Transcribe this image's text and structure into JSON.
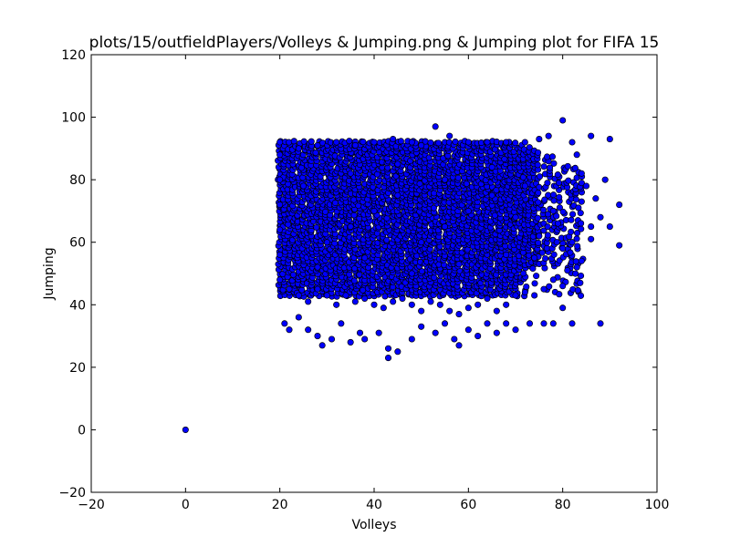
{
  "chart_data": {
    "type": "scatter",
    "title": "plots/15/outfieldPlayers/Volleys & Jumping.png & Jumping plot for FIFA 15",
    "xlabel": "Volleys",
    "ylabel": "Jumping",
    "xlim": [
      -20,
      100
    ],
    "ylim": [
      -20,
      120
    ],
    "xticks": [
      "−20",
      "0",
      "20",
      "40",
      "60",
      "80",
      "100"
    ],
    "yticks": [
      "−20",
      "0",
      "20",
      "40",
      "60",
      "80",
      "100",
      "120"
    ],
    "grid": false,
    "marker_color": "#0000ff",
    "marker_edge_color": "#000000",
    "series": [
      {
        "points": [
          [
            0,
            0
          ],
          [
            20,
            92
          ],
          [
            20,
            88
          ],
          [
            20,
            80
          ],
          [
            20,
            72
          ],
          [
            20,
            64
          ],
          [
            20,
            56
          ],
          [
            20,
            48
          ],
          [
            21,
            34
          ],
          [
            22,
            32
          ],
          [
            24,
            36
          ],
          [
            26,
            32
          ],
          [
            28,
            30
          ],
          [
            29,
            27
          ],
          [
            31,
            29
          ],
          [
            33,
            34
          ],
          [
            35,
            28
          ],
          [
            37,
            31
          ],
          [
            38,
            29
          ],
          [
            41,
            31
          ],
          [
            43,
            23
          ],
          [
            43,
            26
          ],
          [
            45,
            25
          ],
          [
            48,
            29
          ],
          [
            50,
            33
          ],
          [
            53,
            31
          ],
          [
            55,
            34
          ],
          [
            57,
            29
          ],
          [
            58,
            27
          ],
          [
            60,
            32
          ],
          [
            62,
            30
          ],
          [
            64,
            34
          ],
          [
            66,
            31
          ],
          [
            68,
            34
          ],
          [
            70,
            32
          ],
          [
            73,
            34
          ],
          [
            76,
            34
          ],
          [
            78,
            34
          ],
          [
            80,
            39
          ],
          [
            82,
            34
          ],
          [
            88,
            34
          ],
          [
            24,
            90
          ],
          [
            28,
            91
          ],
          [
            32,
            92
          ],
          [
            36,
            91
          ],
          [
            40,
            92
          ],
          [
            44,
            93
          ],
          [
            48,
            92
          ],
          [
            50,
            91
          ],
          [
            53,
            97
          ],
          [
            56,
            94
          ],
          [
            60,
            92
          ],
          [
            64,
            92
          ],
          [
            68,
            92
          ],
          [
            72,
            92
          ],
          [
            75,
            93
          ],
          [
            77,
            94
          ],
          [
            80,
            99
          ],
          [
            82,
            92
          ],
          [
            83,
            88
          ],
          [
            84,
            82
          ],
          [
            85,
            78
          ],
          [
            86,
            94
          ],
          [
            87,
            74
          ],
          [
            88,
            68
          ],
          [
            89,
            80
          ],
          [
            90,
            93
          ],
          [
            90,
            65
          ],
          [
            92,
            72
          ],
          [
            92,
            59
          ],
          [
            86,
            61
          ],
          [
            84,
            54
          ],
          [
            83,
            52
          ],
          [
            81,
            51
          ],
          [
            80,
            46
          ],
          [
            78,
            48
          ],
          [
            76,
            45
          ],
          [
            74,
            43
          ],
          [
            72,
            44
          ],
          [
            70,
            43
          ],
          [
            68,
            40
          ],
          [
            66,
            38
          ],
          [
            64,
            42
          ],
          [
            62,
            40
          ],
          [
            60,
            39
          ],
          [
            58,
            37
          ],
          [
            56,
            38
          ],
          [
            54,
            40
          ],
          [
            52,
            41
          ],
          [
            50,
            38
          ],
          [
            48,
            40
          ],
          [
            46,
            42
          ],
          [
            44,
            41
          ],
          [
            42,
            39
          ],
          [
            40,
            40
          ],
          [
            38,
            42
          ],
          [
            36,
            41
          ],
          [
            34,
            43
          ],
          [
            32,
            40
          ],
          [
            30,
            43
          ],
          [
            28,
            45
          ],
          [
            26,
            41
          ],
          [
            24,
            43
          ],
          [
            22,
            45
          ],
          [
            30,
            60
          ],
          [
            35,
            65
          ],
          [
            40,
            70
          ],
          [
            45,
            75
          ],
          [
            50,
            60
          ],
          [
            55,
            65
          ],
          [
            60,
            70
          ],
          [
            65,
            75
          ],
          [
            70,
            68
          ],
          [
            25,
            78
          ],
          [
            35,
            82
          ],
          [
            45,
            85
          ],
          [
            55,
            80
          ],
          [
            65,
            84
          ],
          [
            72,
            78
          ],
          [
            75,
            62
          ],
          [
            78,
            70
          ],
          [
            80,
            58
          ],
          [
            28,
            52
          ],
          [
            38,
            55
          ],
          [
            48,
            50
          ],
          [
            58,
            53
          ],
          [
            68,
            56
          ],
          [
            74,
            55
          ],
          [
            79,
            66
          ],
          [
            82,
            60
          ],
          [
            84,
            73
          ],
          [
            86,
            65
          ]
        ]
      }
    ],
    "dense_region": {
      "x": [
        20,
        84
      ],
      "y": [
        43,
        92
      ]
    }
  }
}
